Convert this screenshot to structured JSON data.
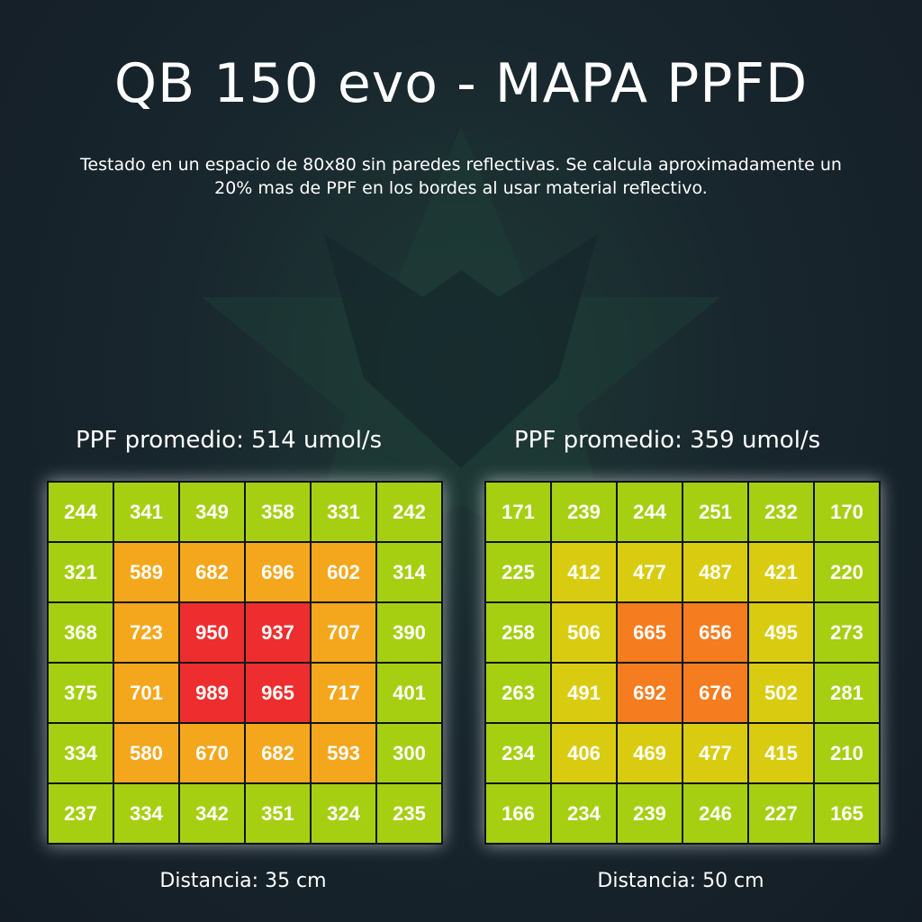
{
  "title": "QB 150 evo - MAPA PPFD",
  "subtitle": "Testado en un espacio de 80x80 sin paredes reflectivas. Se calcula aproximadamente un 20% mas de PPF en los bordes al usar material reflectivo.",
  "colors": {
    "background": "#16202a",
    "green": "#a6cf12",
    "yellow": "#d9cc10",
    "orange": "#f4a71c",
    "deep_orange": "#f57c1f",
    "red": "#ee2e2e"
  },
  "chart_data": [
    {
      "type": "heatmap",
      "title": "PPF promedio: 514 umol/s",
      "xlabel": "Distancia: 35 cm",
      "rows": [
        [
          244,
          341,
          349,
          358,
          331,
          242
        ],
        [
          321,
          589,
          682,
          696,
          602,
          314
        ],
        [
          368,
          723,
          950,
          937,
          707,
          390
        ],
        [
          375,
          701,
          989,
          965,
          717,
          401
        ],
        [
          334,
          580,
          670,
          682,
          593,
          300
        ],
        [
          237,
          334,
          342,
          351,
          324,
          235
        ]
      ]
    },
    {
      "type": "heatmap",
      "title": "PPF promedio: 359 umol/s",
      "xlabel": "Distancia: 50 cm",
      "rows": [
        [
          171,
          239,
          244,
          251,
          232,
          170
        ],
        [
          225,
          412,
          477,
          487,
          421,
          220
        ],
        [
          258,
          506,
          665,
          656,
          495,
          273
        ],
        [
          263,
          491,
          692,
          676,
          502,
          281
        ],
        [
          234,
          406,
          469,
          477,
          415,
          210
        ],
        [
          166,
          234,
          239,
          246,
          227,
          165
        ]
      ]
    }
  ]
}
